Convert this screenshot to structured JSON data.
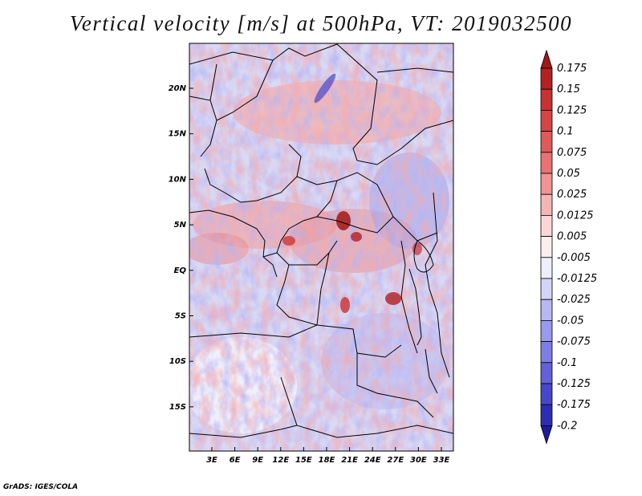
{
  "title": "Vertical velocity [m/s] at 500hPa, VT: 2019032500",
  "credit": "GrADS: IGES/COLA",
  "lat_ticks": [
    "20N",
    "15N",
    "10N",
    "5N",
    "EQ",
    "5S",
    "10S",
    "15S"
  ],
  "lon_ticks": [
    "3E",
    "6E",
    "9E",
    "12E",
    "15E",
    "18E",
    "21E",
    "24E",
    "27E",
    "30E",
    "33E"
  ],
  "colorbar": {
    "labels": [
      "0.175",
      "0.15",
      "0.125",
      "0.1",
      "0.075",
      "0.05",
      "0.025",
      "0.0125",
      "0.005",
      "-0.005",
      "-0.0125",
      "-0.025",
      "-0.05",
      "-0.075",
      "-0.1",
      "-0.125",
      "-0.175",
      "-0.2"
    ],
    "colors": [
      "#a01818",
      "#b42121",
      "#c73232",
      "#d54545",
      "#df5a5a",
      "#e77373",
      "#ef9393",
      "#f5b5b5",
      "#fad6d6",
      "#fdeeee",
      "#ededfb",
      "#d4d4f6",
      "#b7b7f1",
      "#9a9aec",
      "#7d7de3",
      "#6262d8",
      "#4747c9",
      "#2e2eb3",
      "#1c1c99"
    ]
  }
}
